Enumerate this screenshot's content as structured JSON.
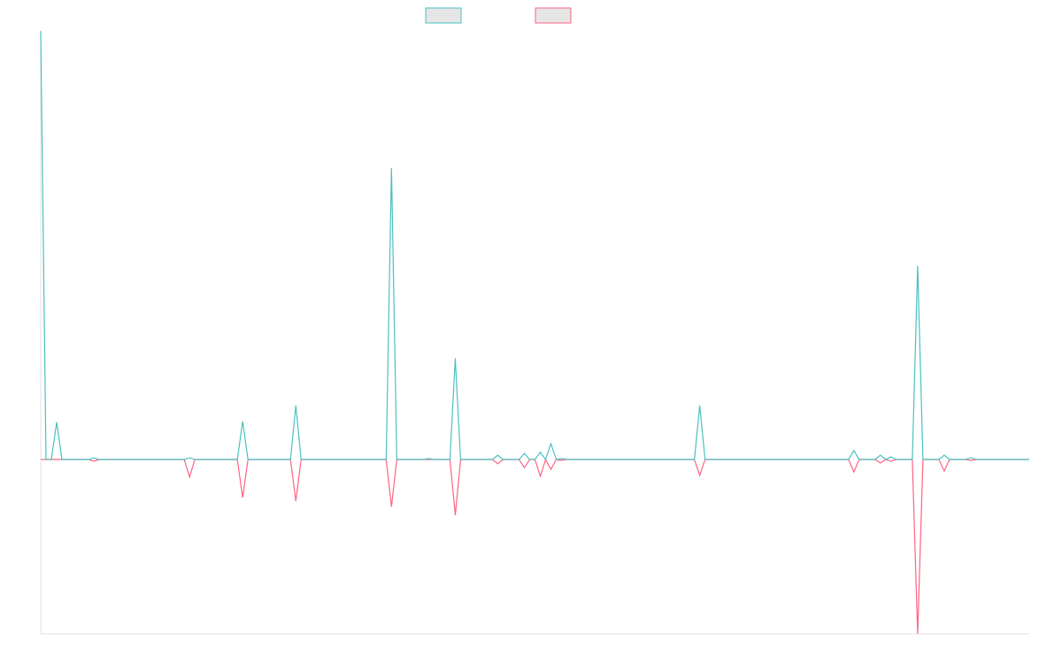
{
  "chart_data": {
    "type": "line",
    "series": [
      {
        "color": "#ff6384",
        "values": [
          0,
          0,
          0,
          0,
          0,
          0,
          0,
          0,
          0,
          0,
          -0.4,
          0,
          0,
          0,
          0,
          0,
          0,
          0,
          0,
          0,
          0,
          0,
          0,
          0,
          0,
          0,
          0,
          0,
          -4.1,
          0,
          0,
          0,
          0,
          0,
          0,
          0,
          0,
          0,
          -8.9,
          0,
          0,
          0,
          0,
          0,
          0,
          0,
          0,
          0,
          -9.7,
          0,
          0,
          0,
          0,
          0,
          0,
          0,
          0,
          0,
          0,
          0,
          0,
          0,
          0,
          0,
          0,
          0,
          -11,
          0,
          0,
          0,
          0,
          0,
          0,
          0,
          0,
          0,
          0,
          0,
          -13,
          0,
          0,
          0,
          0,
          0,
          0,
          0,
          -1,
          0,
          0,
          0,
          0,
          -1.9,
          0,
          0,
          -3.9,
          0,
          -2.3,
          0,
          -0.2,
          0,
          0,
          0,
          0,
          0,
          0,
          0,
          0,
          0,
          0,
          0,
          0,
          0,
          0,
          0,
          0,
          0,
          0,
          0,
          0,
          0,
          0,
          0,
          0,
          0,
          -3.7,
          0,
          0,
          0,
          0,
          0,
          0,
          0,
          0,
          0,
          0,
          0,
          0,
          0,
          0,
          0,
          0,
          0,
          0,
          0,
          0,
          0,
          0,
          0,
          0,
          0,
          0,
          0,
          0,
          -2.9,
          0,
          0,
          0,
          0,
          -0.8,
          0,
          -0.4,
          0,
          0,
          0,
          0,
          -40.7,
          0,
          0,
          0,
          0,
          -2.7,
          0,
          0,
          0,
          0,
          -0.2,
          0,
          0,
          0,
          0,
          0,
          0,
          0,
          0,
          0,
          0,
          0
        ]
      },
      {
        "color": "#4bc0c0",
        "values": [
          100,
          0,
          0,
          8.7,
          0,
          0,
          0,
          0,
          0,
          0,
          0.4,
          0,
          0,
          0,
          0,
          0,
          0,
          0,
          0,
          0,
          0,
          0,
          0,
          0,
          0,
          0,
          0,
          0,
          0.4,
          0,
          0,
          0,
          0,
          0,
          0,
          0,
          0,
          0,
          8.9,
          0,
          0,
          0,
          0,
          0,
          0,
          0,
          0,
          0,
          12.6,
          0,
          0,
          0,
          0,
          0,
          0,
          0,
          0,
          0,
          0,
          0,
          0,
          0,
          0,
          0,
          0,
          0,
          68,
          0,
          0,
          0,
          0,
          0,
          0,
          0.2,
          0,
          0,
          0,
          0,
          23.6,
          0,
          0,
          0,
          0,
          0,
          0,
          0,
          1,
          0,
          0,
          0,
          0,
          1.4,
          0,
          0,
          1.7,
          0,
          3.7,
          0,
          0.2,
          0,
          0,
          0,
          0,
          0,
          0,
          0,
          0,
          0,
          0,
          0,
          0,
          0,
          0,
          0,
          0,
          0,
          0,
          0,
          0,
          0,
          0,
          0,
          0,
          0,
          12.6,
          0,
          0,
          0,
          0,
          0,
          0,
          0,
          0,
          0,
          0,
          0,
          0,
          0,
          0,
          0,
          0,
          0,
          0,
          0,
          0,
          0,
          0,
          0,
          0,
          0,
          0,
          0,
          0,
          2.1,
          0,
          0,
          0,
          0,
          1,
          0,
          0.6,
          0,
          0,
          0,
          0,
          45.2,
          0,
          0,
          0,
          0,
          1,
          0,
          0,
          0,
          0,
          0.4,
          0,
          0,
          0,
          0,
          0,
          0,
          0,
          0,
          0,
          0,
          0
        ]
      }
    ],
    "ylim": [
      -40.7,
      100
    ]
  }
}
